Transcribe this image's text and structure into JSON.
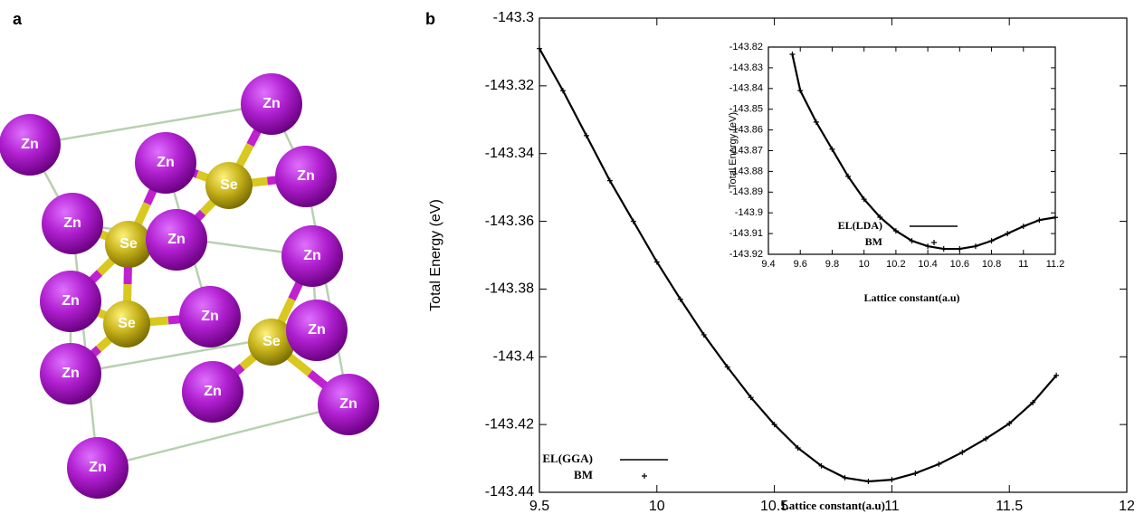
{
  "structure": {
    "label": "a",
    "atoms": [
      "Zn",
      "Zn",
      "Zn",
      "Zn",
      "Se",
      "Zn",
      "Se",
      "Zn",
      "Zn",
      "Zn",
      "Zn",
      "Se",
      "Se",
      "Zn",
      "Zn",
      "Zn",
      "Zn",
      "Zn"
    ]
  },
  "chart_data": [
    {
      "type": "line",
      "panel_label": "b",
      "x": [
        9.5,
        9.6,
        9.7,
        9.8,
        9.9,
        10.0,
        10.1,
        10.2,
        10.3,
        10.4,
        10.5,
        10.6,
        10.7,
        10.8,
        10.9,
        11.0,
        11.1,
        11.2,
        11.3,
        11.4,
        11.5,
        11.6,
        11.7
      ],
      "series": [
        {
          "name": "EL(GGA)",
          "color": "#000000",
          "style": "line",
          "values": [
            -143.309,
            -143.3214,
            -143.3347,
            -143.348,
            -143.36,
            -143.372,
            -143.383,
            -143.3935,
            -143.403,
            -143.412,
            -143.42,
            -143.4269,
            -143.4322,
            -143.4357,
            -143.4368,
            -143.4363,
            -143.4344,
            -143.4317,
            -143.4282,
            -143.4242,
            -143.4197,
            -143.4135,
            -143.4055
          ]
        },
        {
          "name": "BM",
          "color": "#000000",
          "style": "plus",
          "values": [
            -143.309,
            -143.3214,
            -143.3347,
            -143.348,
            -143.36,
            -143.372,
            -143.383,
            -143.3935,
            -143.403,
            -143.412,
            -143.42,
            -143.4269,
            -143.4322,
            -143.4357,
            -143.4368,
            -143.4363,
            -143.4344,
            -143.4317,
            -143.4282,
            -143.4242,
            -143.4197,
            -143.4135,
            -143.4055
          ]
        }
      ],
      "xlim": [
        9.5,
        12
      ],
      "xticks": [
        9.5,
        10,
        10.5,
        11,
        11.5,
        12
      ],
      "ylim": [
        -143.44,
        -143.3
      ],
      "yticks": [
        -143.44,
        -143.42,
        -143.4,
        -143.38,
        -143.36,
        -143.34,
        -143.32,
        -143.3
      ],
      "xlabel": "Lattice constant(a.u)",
      "ylabel": "Total Energy (eV)",
      "legend": "lower left"
    },
    {
      "type": "line",
      "x": [
        9.55,
        9.6,
        9.7,
        9.8,
        9.9,
        10.0,
        10.1,
        10.2,
        10.3,
        10.4,
        10.5,
        10.6,
        10.7,
        10.8,
        10.9,
        11.0,
        11.1,
        11.2
      ],
      "series": [
        {
          "name": "EL(LDA)",
          "color": "#000000",
          "style": "line",
          "values": [
            -143.8235,
            -143.841,
            -143.8562,
            -143.8693,
            -143.8824,
            -143.8934,
            -143.9021,
            -143.9087,
            -143.9135,
            -143.9161,
            -143.9174,
            -143.9174,
            -143.9161,
            -143.9135,
            -143.91,
            -143.9065,
            -143.9035,
            -143.9022
          ]
        },
        {
          "name": "BM",
          "color": "#000000",
          "style": "plus",
          "values": [
            -143.8235,
            -143.841,
            -143.8562,
            -143.8693,
            -143.8824,
            -143.8934,
            -143.9021,
            -143.9087,
            -143.9135,
            -143.9161,
            -143.9174,
            -143.9174,
            -143.9161,
            -143.9135,
            -143.91,
            -143.9065,
            -143.9035,
            -143.9022
          ]
        }
      ],
      "xlim": [
        9.4,
        11.2
      ],
      "xticks": [
        9.4,
        9.6,
        9.8,
        10,
        10.2,
        10.4,
        10.6,
        10.8,
        11,
        11.2
      ],
      "ylim": [
        -143.92,
        -143.82
      ],
      "yticks": [
        -143.92,
        -143.91,
        -143.9,
        -143.89,
        -143.88,
        -143.87,
        -143.86,
        -143.85,
        -143.84,
        -143.83,
        -143.82
      ],
      "xlabel": "Lattice constant(a.u)",
      "ylabel": "Total Energy (eV)",
      "legend": "lower left"
    }
  ]
}
